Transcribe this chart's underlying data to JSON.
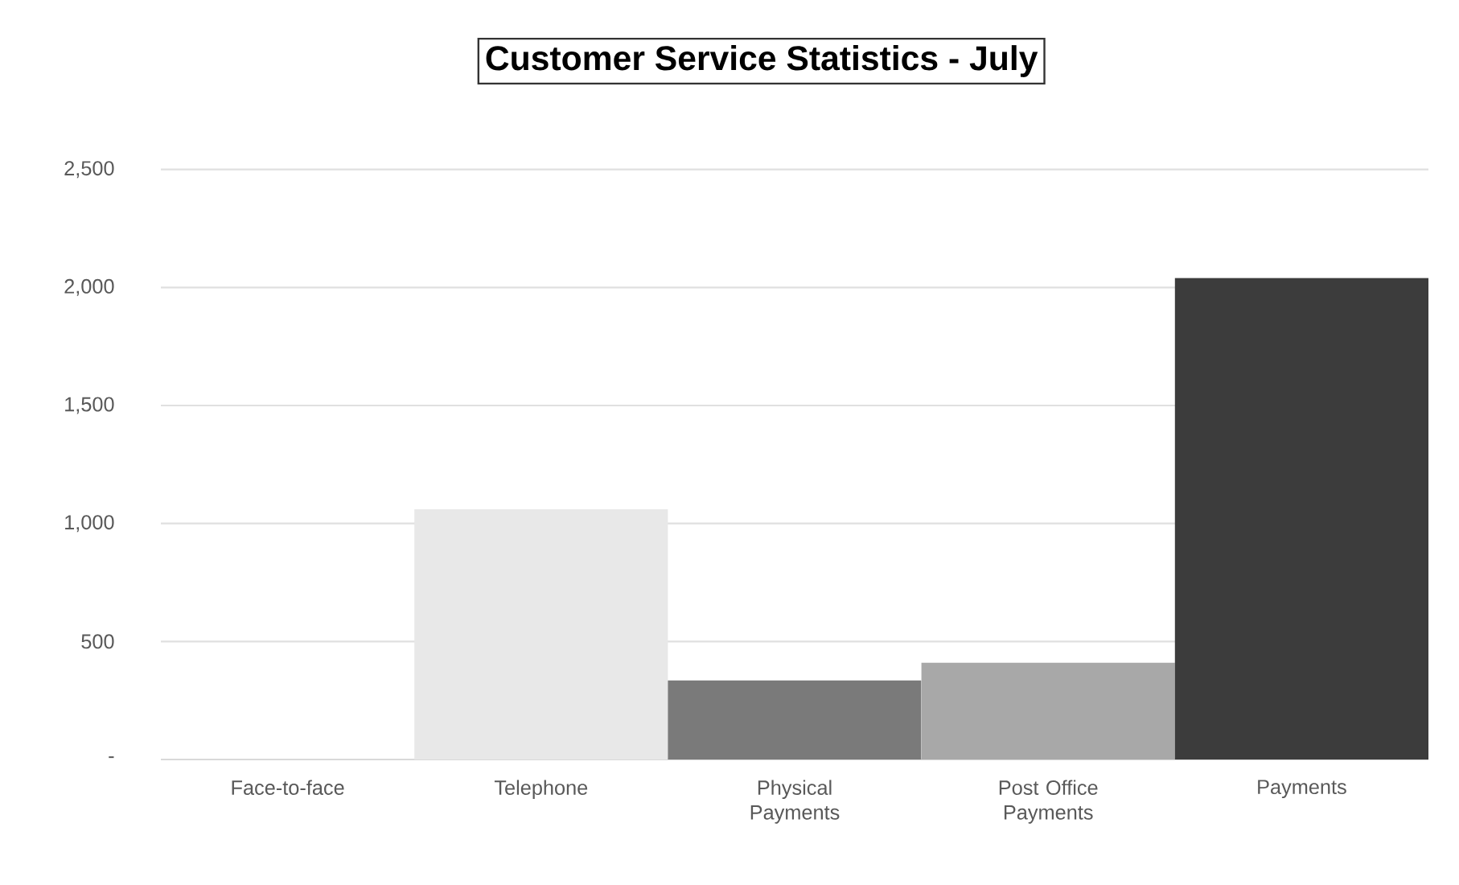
{
  "chart_data": {
    "type": "bar",
    "title": "Customer Service Statistics  - July",
    "categories": [
      "Face-to-face",
      "Telephone",
      "Physical Payments",
      "Post Office Payments",
      "Payments"
    ],
    "values": [
      0,
      1060,
      335,
      410,
      2040
    ],
    "colors": [
      "#f4f4f4",
      "#e8e8e8",
      "#7a7a7a",
      "#a8a8a8",
      "#3c3c3c"
    ],
    "ylim": [
      0,
      2500
    ],
    "yticks": [
      {
        "value": 0,
        "label": "-"
      },
      {
        "value": 500,
        "label": "500"
      },
      {
        "value": 1000,
        "label": "1,000"
      },
      {
        "value": 1500,
        "label": "1,500"
      },
      {
        "value": 2000,
        "label": "2,000"
      },
      {
        "value": 2500,
        "label": "2,500"
      }
    ],
    "grid": "y"
  }
}
